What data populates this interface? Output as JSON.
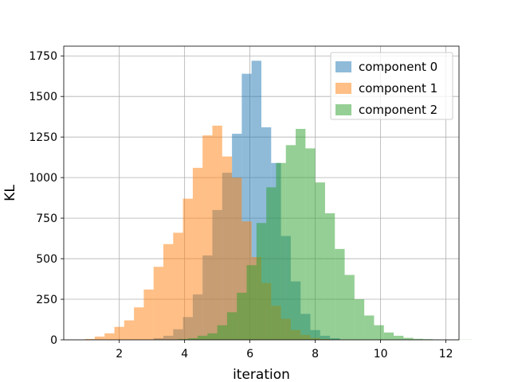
{
  "chart_data": {
    "type": "histogram",
    "xlabel": "iteration",
    "ylabel": "KL",
    "xlim": [
      0.3,
      12.4
    ],
    "ylim": [
      0,
      1810
    ],
    "xticks": [
      2,
      4,
      6,
      8,
      10,
      12
    ],
    "yticks": [
      0,
      250,
      500,
      750,
      1000,
      1250,
      1500,
      1750
    ],
    "grid": true,
    "legend_position": "top-right",
    "bin_width": 0.3,
    "series": [
      {
        "name": "component 0",
        "color": "#1f77b4",
        "opacity": 0.5,
        "bin_start": 3.05,
        "values": [
          10,
          25,
          65,
          140,
          280,
          520,
          800,
          1030,
          1270,
          1640,
          1720,
          1310,
          1090,
          640,
          360,
          160,
          60,
          25,
          10
        ]
      },
      {
        "name": "component 1",
        "color": "#ff7f0e",
        "opacity": 0.5,
        "bin_start": 0.95,
        "values": [
          5,
          20,
          40,
          80,
          120,
          200,
          310,
          450,
          590,
          660,
          870,
          1060,
          1260,
          1320,
          1130,
          1000,
          730,
          510,
          350,
          210,
          130,
          60,
          30,
          12,
          5
        ]
      },
      {
        "name": "component 2",
        "color": "#2ca02c",
        "opacity": 0.5,
        "bin_start": 3.8,
        "values": [
          5,
          10,
          25,
          40,
          90,
          170,
          290,
          460,
          720,
          940,
          1090,
          1200,
          1300,
          1180,
          970,
          780,
          560,
          400,
          250,
          150,
          90,
          45,
          25,
          12,
          6,
          4,
          2,
          1,
          1,
          1
        ]
      }
    ]
  }
}
